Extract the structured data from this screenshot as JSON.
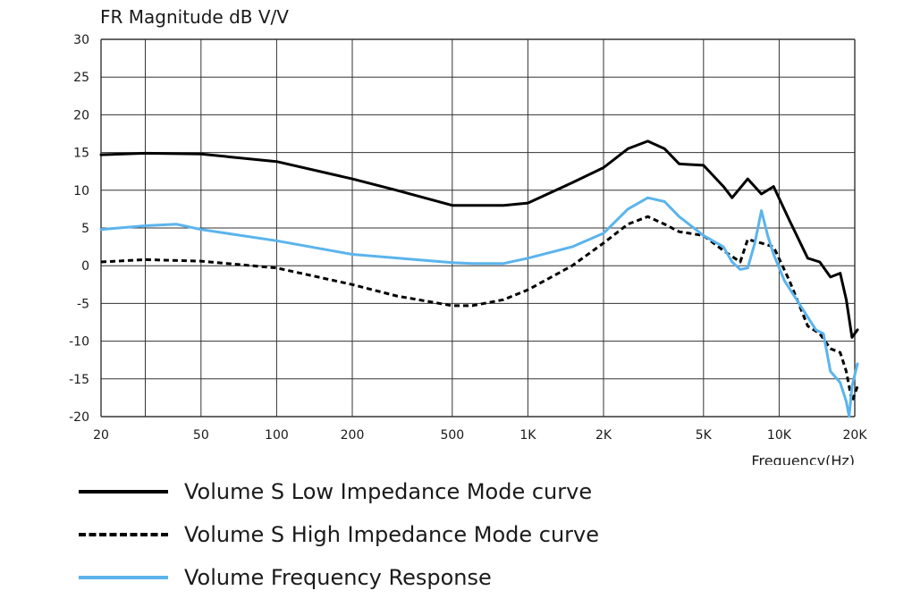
{
  "chart_data": {
    "type": "line",
    "title": "FR Magnitude dB V/V",
    "xlabel": "Frequency(Hz)",
    "ylabel": "FR Magnitude dB V/V",
    "x_scale": "log",
    "xlim": [
      20,
      20000
    ],
    "ylim": [
      -20,
      30
    ],
    "grid": true,
    "legend_position": "bottom",
    "x_ticks": [
      20,
      50,
      100,
      200,
      500,
      1000,
      2000,
      5000,
      10000,
      20000
    ],
    "x_tick_labels": [
      "20",
      "50",
      "100",
      "200",
      "500",
      "1K",
      "2K",
      "5K",
      "10K",
      "20K"
    ],
    "x_grid": [
      20,
      30,
      50,
      100,
      200,
      500,
      1000,
      2000,
      5000,
      10000,
      20000
    ],
    "y_ticks": [
      30,
      25,
      20,
      15,
      10,
      5,
      0,
      -5,
      -10,
      -15,
      -20
    ],
    "y_tick_labels": [
      "30",
      "25",
      "20",
      "15",
      "10",
      "5",
      "0",
      "-5",
      "-10",
      "-15",
      "-20"
    ],
    "series": [
      {
        "name": "Volume S Low Impedance Mode curve",
        "color": "#000000",
        "style": "solid",
        "x": [
          20,
          30,
          50,
          100,
          200,
          300,
          500,
          600,
          800,
          1000,
          1500,
          2000,
          2500,
          3000,
          3500,
          4000,
          5000,
          6000,
          6500,
          7500,
          8500,
          9500,
          11000,
          13000,
          14500,
          16000,
          17500,
          18500,
          19500,
          20500
        ],
        "y": [
          14.7,
          14.9,
          14.8,
          13.8,
          11.5,
          10.0,
          8.0,
          8.0,
          8.0,
          8.3,
          11.0,
          13.0,
          15.5,
          16.5,
          15.5,
          13.5,
          13.3,
          10.5,
          9.0,
          11.5,
          9.5,
          10.5,
          6.0,
          1.0,
          0.5,
          -1.5,
          -1.0,
          -4.5,
          -9.5,
          -8.5
        ]
      },
      {
        "name": "Volume S High Impedance Mode curve",
        "color": "#000000",
        "style": "dashed",
        "x": [
          20,
          30,
          50,
          100,
          200,
          300,
          500,
          600,
          800,
          1000,
          1500,
          2000,
          2500,
          3000,
          3500,
          4000,
          5000,
          6000,
          7000,
          7500,
          8500,
          9500,
          11000,
          13000,
          14500,
          16000,
          17500,
          18500,
          19500,
          20500
        ],
        "y": [
          0.5,
          0.8,
          0.6,
          -0.3,
          -2.5,
          -4.0,
          -5.3,
          -5.3,
          -4.5,
          -3.2,
          0.0,
          3.0,
          5.5,
          6.5,
          5.5,
          4.5,
          4.0,
          2.0,
          0.5,
          3.5,
          3.0,
          2.5,
          -2.0,
          -8.0,
          -9.0,
          -11.0,
          -11.5,
          -14.0,
          -18.0,
          -16.0
        ]
      },
      {
        "name": "Volume Frequency Response",
        "color": "#5bb4ec",
        "style": "solid",
        "x": [
          20,
          30,
          40,
          50,
          100,
          200,
          500,
          600,
          800,
          1000,
          1500,
          2000,
          2500,
          3000,
          3500,
          4000,
          5000,
          6000,
          6500,
          7000,
          7500,
          8000,
          8500,
          9000,
          9500,
          10500,
          12000,
          14000,
          15000,
          16000,
          17500,
          18500,
          19000,
          19500,
          20500
        ],
        "y": [
          4.8,
          5.3,
          5.5,
          4.8,
          3.3,
          1.5,
          0.4,
          0.3,
          0.3,
          1.0,
          2.5,
          4.3,
          7.5,
          9.0,
          8.5,
          6.5,
          4.0,
          2.5,
          0.5,
          -0.5,
          -0.3,
          3.0,
          7.3,
          4.0,
          1.5,
          -2.0,
          -5.0,
          -8.5,
          -9.0,
          -14.0,
          -15.5,
          -18.0,
          -20.0,
          -16.0,
          -13.0
        ]
      }
    ]
  }
}
